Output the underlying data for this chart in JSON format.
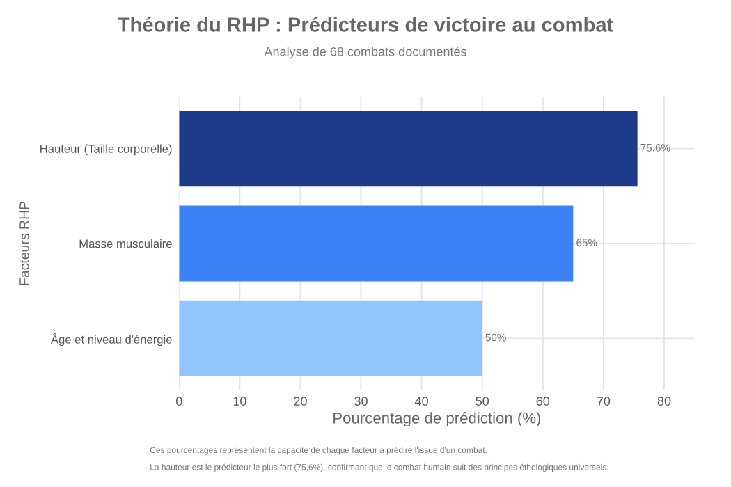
{
  "chart_data": {
    "type": "bar",
    "orientation": "horizontal",
    "title": "Théorie du RHP : Prédicteurs de victoire au combat",
    "subtitle": "Analyse de 68 combats documentés",
    "xlabel": "Pourcentage de prédiction (%)",
    "ylabel": "Facteurs RHP",
    "categories": [
      "Hauteur (Taille corporelle)",
      "Masse musculaire",
      "Âge et niveau d'énergie"
    ],
    "values": [
      75.6,
      65,
      50
    ],
    "colors": [
      "#1e3a8a",
      "#3b82f6",
      "#93c5fd"
    ],
    "value_labels": [
      "75.6%",
      "65%",
      "50%"
    ],
    "xlim": [
      0,
      85
    ],
    "xticks": [
      0,
      10,
      20,
      30,
      40,
      50,
      60,
      70,
      80
    ],
    "grid": true,
    "annotations": [
      "Ces pourcentages représentent la capacité de chaque facteur à prédire l'issue d'un combat.",
      "La hauteur est le prédicteur le plus fort (75,6%), confirmant que le combat humain suit des principes éthologiques universels."
    ]
  }
}
